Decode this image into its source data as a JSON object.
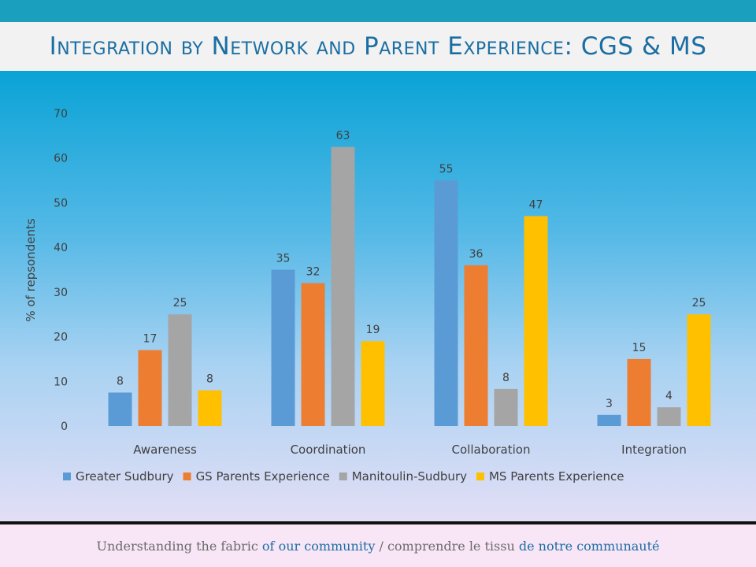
{
  "title": {
    "parts": [
      {
        "t": "I",
        "small": false
      },
      {
        "t": "ntegration by ",
        "small": true
      },
      {
        "t": "N",
        "small": false
      },
      {
        "t": "etwork and ",
        "small": true
      },
      {
        "t": "P",
        "small": false
      },
      {
        "t": "arent ",
        "small": true
      },
      {
        "t": "E",
        "small": false
      },
      {
        "t": "xperience",
        "small": true
      },
      {
        "t": ": CGS & MS",
        "small": false
      }
    ]
  },
  "footer": {
    "part1": "Understanding the fabric ",
    "part2": "of our community",
    "part3": " / comprendre le tissu ",
    "part4": "de notre communauté"
  },
  "chart_data": {
    "type": "bar",
    "title": "",
    "xlabel": "",
    "ylabel": "% of repsondents",
    "ylim": [
      0,
      70
    ],
    "yticks": [
      0,
      10,
      20,
      30,
      40,
      50,
      60,
      70
    ],
    "grid": false,
    "legend": "bottom",
    "categories": [
      "Awareness",
      "Coordination",
      "Collaboration",
      "Integration"
    ],
    "series": [
      {
        "name": "Greater Sudbury",
        "color": "#5b9bd5",
        "values": [
          7.5,
          35,
          55,
          2.5
        ],
        "labels": [
          "8",
          "35",
          "55",
          "3"
        ]
      },
      {
        "name": "GS Parents Experience",
        "color": "#ed7d31",
        "values": [
          17,
          32,
          36,
          15
        ],
        "labels": [
          "17",
          "32",
          "36",
          "15"
        ]
      },
      {
        "name": "Manitoulin-Sudbury",
        "color": "#a5a5a5",
        "values": [
          25,
          62.5,
          8.3,
          4.2
        ],
        "labels": [
          "25",
          "63",
          "8",
          "4"
        ]
      },
      {
        "name": "MS Parents Experience",
        "color": "#ffc000",
        "values": [
          8,
          19,
          47,
          25
        ],
        "labels": [
          "8",
          "19",
          "47",
          "25"
        ]
      }
    ]
  }
}
